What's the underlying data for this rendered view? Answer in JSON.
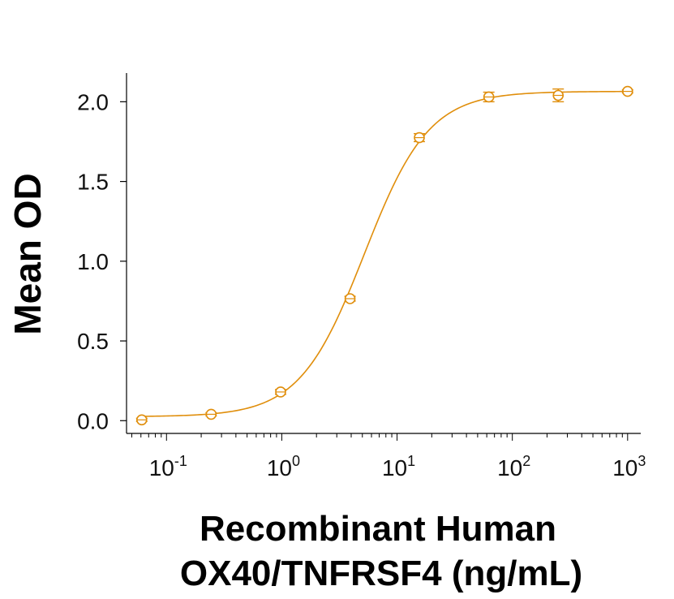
{
  "chart_data": {
    "type": "scatter",
    "title": "",
    "xlabel_lines": [
      "Recombinant Human",
      "OX40/TNFRSF4 (ng/mL)"
    ],
    "ylabel": "Mean OD",
    "x_scale": "log",
    "xlim": [
      0.045,
      1300
    ],
    "ylim": [
      -0.08,
      2.18
    ],
    "x_ticks": [
      {
        "value": 0.1,
        "base": "10",
        "exp": "-1"
      },
      {
        "value": 1,
        "base": "10",
        "exp": "0"
      },
      {
        "value": 10,
        "base": "10",
        "exp": "1"
      },
      {
        "value": 100,
        "base": "10",
        "exp": "2"
      },
      {
        "value": 1000,
        "base": "10",
        "exp": "3"
      }
    ],
    "y_ticks": [
      {
        "value": 0.0,
        "label": "0.0"
      },
      {
        "value": 0.5,
        "label": "0.5"
      },
      {
        "value": 1.0,
        "label": "1.0"
      },
      {
        "value": 1.5,
        "label": "1.5"
      },
      {
        "value": 2.0,
        "label": "2.0"
      }
    ],
    "grid": false,
    "legend": "none",
    "series": [
      {
        "color": "#E08E0B",
        "points": [
          {
            "x": 0.061,
            "y": 0.005,
            "err": 0.01
          },
          {
            "x": 0.244,
            "y": 0.04,
            "err": 0.01
          },
          {
            "x": 0.977,
            "y": 0.18,
            "err": 0.015
          },
          {
            "x": 3.91,
            "y": 0.765,
            "err": 0.015
          },
          {
            "x": 15.6,
            "y": 1.775,
            "err": 0.025
          },
          {
            "x": 62.5,
            "y": 2.03,
            "err": 0.03
          },
          {
            "x": 250,
            "y": 2.04,
            "err": 0.04
          },
          {
            "x": 1000,
            "y": 2.065,
            "err": 0.01
          }
        ],
        "fit": {
          "model": "4PL",
          "bottom": 0.025,
          "top": 2.065,
          "ec50": 5.2,
          "hill": 1.55
        }
      }
    ]
  }
}
